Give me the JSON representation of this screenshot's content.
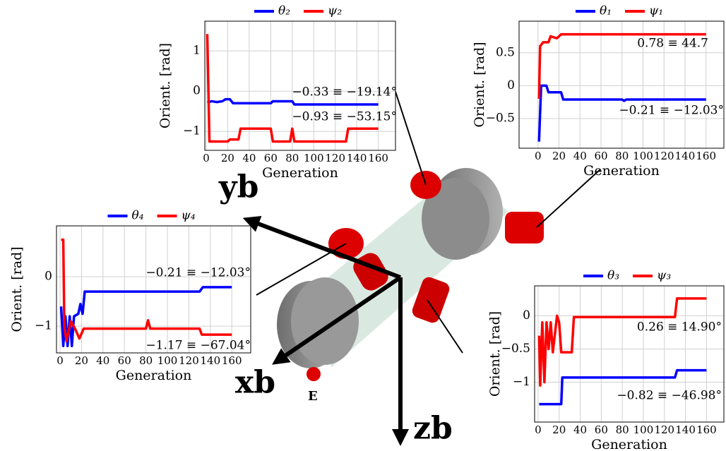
{
  "chart_data": [
    {
      "type": "line",
      "xlabel": "Generation",
      "ylabel": "Orient. [rad]",
      "xlim": [
        -1.3,
        176
      ],
      "xticks": [
        0,
        20,
        40,
        60,
        80,
        100,
        120,
        140,
        160
      ],
      "ylim": [
        -1.47,
        1.74
      ],
      "yticks": [
        {
          "value": -1,
          "label": "−1"
        },
        0,
        1
      ],
      "grid": true,
      "series": [
        {
          "name": "θ₂",
          "color": "#0000ff",
          "x": [
            1,
            5,
            10,
            15,
            18,
            22,
            25,
            60,
            62,
            80,
            82,
            160
          ],
          "values": [
            -0.28,
            -0.25,
            -0.27,
            -0.25,
            -0.2,
            -0.2,
            -0.3,
            -0.3,
            -0.25,
            -0.25,
            -0.33,
            -0.33
          ]
        },
        {
          "name": "ψ₂",
          "color": "#ff0000",
          "x": [
            1,
            3,
            20,
            22,
            30,
            32,
            60,
            62,
            78,
            80,
            82,
            130,
            132,
            160
          ],
          "values": [
            1.42,
            -1.25,
            -1.25,
            -1.2,
            -1.2,
            -0.93,
            -0.93,
            -1.25,
            -1.25,
            -0.93,
            -1.25,
            -1.25,
            -0.93,
            -0.93
          ]
        }
      ],
      "annotations": [
        "−0.33 ≡ −19.14°",
        "−0.93 ≡ −53.15°"
      ]
    },
    {
      "type": "line",
      "xlabel": "Generation",
      "ylabel": "Orient. [rad]",
      "xlim": [
        -18,
        177
      ],
      "xticks": [
        0,
        20,
        40,
        60,
        80,
        100,
        120,
        140,
        160
      ],
      "ylim": [
        -0.95,
        0.98
      ],
      "yticks": [
        {
          "value": -0.5,
          "label": "−0.5"
        },
        0,
        0.5
      ],
      "grid": true,
      "series": [
        {
          "name": "θ₁",
          "color": "#0000ff",
          "x": [
            1,
            3,
            8,
            10,
            22,
            24,
            80,
            82,
            84,
            160
          ],
          "values": [
            -0.85,
            0,
            0,
            -0.1,
            -0.1,
            -0.21,
            -0.21,
            -0.23,
            -0.21,
            -0.21
          ]
        },
        {
          "name": "ψ₁",
          "color": "#ff0000",
          "x": [
            1,
            2,
            5,
            10,
            12,
            18,
            22,
            160
          ],
          "values": [
            -0.2,
            0.6,
            0.66,
            0.66,
            0.75,
            0.72,
            0.78,
            0.78
          ]
        }
      ],
      "annotations": [
        "0.78 ≡ 44.7",
        "−0.21 ≡ −12.03°"
      ]
    },
    {
      "type": "line",
      "xlabel": "Generation",
      "ylabel": "Orient. [rad]",
      "xlim": [
        -3.3,
        177.6
      ],
      "xticks": [
        0,
        20,
        40,
        60,
        80,
        100,
        120,
        140,
        160
      ],
      "ylim": [
        -1.54,
        1.03
      ],
      "yticks": [
        {
          "value": -1,
          "label": "−1"
        },
        0
      ],
      "grid": true,
      "series": [
        {
          "name": "θ₄",
          "color": "#0000ff",
          "x": [
            1,
            3,
            5,
            7,
            9,
            11,
            13,
            17,
            19,
            21,
            23,
            130,
            133,
            160
          ],
          "values": [
            -0.6,
            -1.4,
            -0.8,
            -1.4,
            -0.8,
            -1.4,
            -0.8,
            -0.75,
            -0.55,
            -0.75,
            -0.3,
            -0.3,
            -0.21,
            -0.21
          ]
        },
        {
          "name": "ψ₄",
          "color": "#ff0000",
          "x": [
            1,
            3,
            4,
            6,
            10,
            14,
            18,
            22,
            80,
            82,
            84,
            130,
            132,
            160
          ],
          "values": [
            0.75,
            0.75,
            -1,
            -1.3,
            -0.9,
            -1.05,
            -1.25,
            -1.05,
            -1.05,
            -0.88,
            -1.05,
            -1.05,
            -1.17,
            -1.17
          ]
        }
      ],
      "annotations": [
        "−0.21 ≡ −12.03°",
        "−1.17 ≡ −67.04°"
      ]
    },
    {
      "type": "line",
      "xlabel": "Generation",
      "ylabel": "Orient. [rad]",
      "xlim": [
        -3.3,
        176.5
      ],
      "xticks": [
        0,
        20,
        40,
        60,
        80,
        100,
        120,
        140,
        160
      ],
      "ylim": [
        -1.6,
        0.45
      ],
      "yticks": [
        {
          "value": -1,
          "label": "−1"
        },
        {
          "value": -0.5,
          "label": "−0.5"
        },
        0
      ],
      "grid": true,
      "series": [
        {
          "name": "θ₃",
          "color": "#0000ff",
          "x": [
            1,
            22,
            23,
            130,
            132,
            160
          ],
          "values": [
            -1.33,
            -1.33,
            -0.93,
            -0.93,
            -0.82,
            -0.82
          ]
        },
        {
          "name": "ψ₃",
          "color": "#ff0000",
          "x": [
            1,
            2,
            4,
            6,
            8,
            10,
            12,
            14,
            18,
            20,
            22,
            32,
            34,
            130,
            132,
            160
          ],
          "values": [
            -0.3,
            -1.05,
            -0.1,
            -1,
            -0.1,
            -0.5,
            -0.1,
            -0.55,
            0,
            -0.1,
            -0.55,
            -0.55,
            -0.02,
            -0.02,
            0.26,
            0.26
          ]
        }
      ],
      "annotations": [
        "0.26 ≡ 14.90°",
        "−0.82 ≡ −46.98°"
      ]
    }
  ],
  "diagram_labels": {
    "y_axis": "yb",
    "x_axis": "xb",
    "z_axis": "zb",
    "end_effector": "E"
  }
}
